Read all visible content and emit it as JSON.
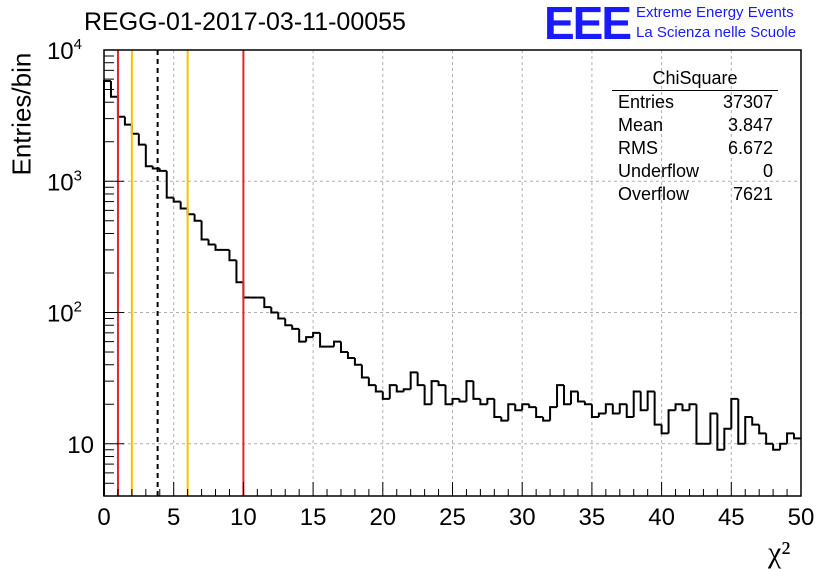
{
  "title": "REGG-01-2017-03-11-00055",
  "logo": {
    "mark": "EEE",
    "line1": "Extreme Energy Events",
    "line2": "La Scienza nelle Scuole",
    "color": "#1a1aff"
  },
  "stats": {
    "title": "ChiSquare",
    "rows": [
      {
        "label": "Entries",
        "value": "37307"
      },
      {
        "label": "Mean",
        "value": "3.847"
      },
      {
        "label": "RMS",
        "value": "6.672"
      },
      {
        "label": "Underflow",
        "value": "0"
      },
      {
        "label": "Overflow",
        "value": "7621"
      }
    ]
  },
  "chart_data": {
    "type": "bar",
    "style": "step-histogram",
    "ylabel": "Entries/bin",
    "xlabel": "χ²",
    "xlim": [
      0,
      50
    ],
    "ylim": [
      4,
      10000
    ],
    "yscale": "log",
    "grid": true,
    "bin_width": 0.5,
    "x_ticks": [
      "0",
      "5",
      "10",
      "15",
      "20",
      "25",
      "30",
      "35",
      "40",
      "45",
      "50"
    ],
    "y_ticks": [
      {
        "value": 10,
        "label": "10"
      },
      {
        "value": 100,
        "label": "10²"
      },
      {
        "value": 1000,
        "label": "10³"
      },
      {
        "value": 10000,
        "label": "10⁴"
      }
    ],
    "values": [
      5800,
      4400,
      3100,
      2700,
      2300,
      1900,
      1300,
      1250,
      1200,
      750,
      700,
      620,
      560,
      500,
      360,
      330,
      300,
      300,
      250,
      170,
      130,
      130,
      130,
      110,
      100,
      90,
      80,
      75,
      60,
      65,
      70,
      55,
      55,
      60,
      50,
      45,
      40,
      32,
      28,
      25,
      22,
      28,
      25,
      26,
      35,
      28,
      20,
      30,
      28,
      20,
      22,
      21,
      30,
      22,
      20,
      22,
      16,
      15,
      20,
      18,
      20,
      19,
      16,
      15,
      19,
      28,
      20,
      25,
      21,
      20,
      16,
      17,
      20,
      17,
      20,
      16,
      25,
      18,
      25,
      14,
      12,
      18,
      20,
      18,
      20,
      10,
      10,
      17,
      9,
      13,
      22,
      10,
      16,
      14,
      12,
      10,
      9,
      10,
      12,
      11
    ],
    "markers": [
      {
        "x": 1,
        "color": "#e8222a",
        "style": "solid"
      },
      {
        "x": 2,
        "color": "#f5c400",
        "style": "solid"
      },
      {
        "x": 3.847,
        "color": "#000000",
        "style": "dashed"
      },
      {
        "x": 6,
        "color": "#f5c400",
        "style": "solid"
      },
      {
        "x": 10,
        "color": "#e8222a",
        "style": "solid"
      }
    ]
  }
}
